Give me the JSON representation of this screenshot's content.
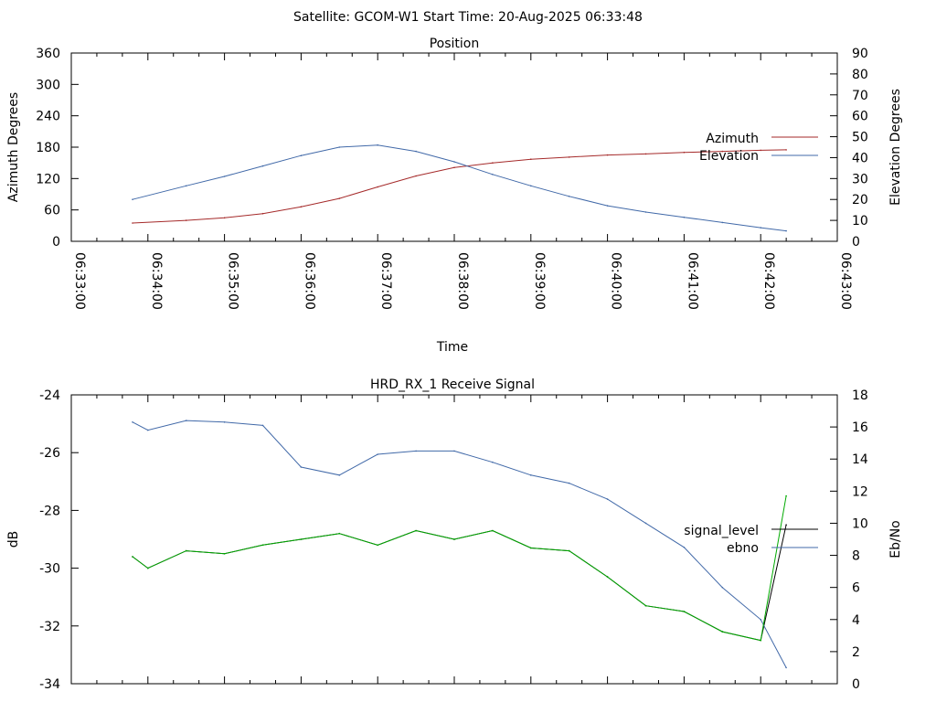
{
  "header": {
    "title": "Satellite: GCOM-W1    Start Time: 20-Aug-2025 06:33:48"
  },
  "chart_data": [
    {
      "type": "line",
      "title": "Position",
      "xlabel": "Time",
      "ylabel": "Azimuth Degrees",
      "y2label": "Elevation Degrees",
      "xlim": [
        "06:33:00",
        "06:43:00"
      ],
      "ylim": [
        0,
        360
      ],
      "y2lim": [
        0,
        90
      ],
      "y_ticks": [
        "0",
        "60",
        "120",
        "180",
        "240",
        "300",
        "360"
      ],
      "y2_ticks": [
        "0",
        "10",
        "20",
        "30",
        "40",
        "50",
        "60",
        "70",
        "80",
        "90"
      ],
      "x_ticks": [
        "06:33:00",
        "06:34:00",
        "06:35:00",
        "06:36:00",
        "06:37:00",
        "06:38:00",
        "06:39:00",
        "06:40:00",
        "06:41:00",
        "06:42:00",
        "06:43:00"
      ],
      "legend_position": "right",
      "grid": false,
      "series": [
        {
          "name": "Azimuth",
          "axis": "left",
          "color": "#a52a2a",
          "x": [
            "06:33:48",
            "06:34:30",
            "06:35:00",
            "06:35:30",
            "06:36:00",
            "06:36:30",
            "06:37:00",
            "06:37:30",
            "06:38:00",
            "06:38:30",
            "06:39:00",
            "06:39:30",
            "06:40:00",
            "06:40:30",
            "06:41:00",
            "06:41:30",
            "06:42:00",
            "06:42:20"
          ],
          "values": [
            35,
            40,
            45,
            53,
            66,
            82,
            104,
            125,
            141,
            150,
            157,
            161,
            165,
            167,
            170,
            172,
            174,
            175
          ]
        },
        {
          "name": "Elevation",
          "axis": "right",
          "color": "#4169a8",
          "x": [
            "06:33:48",
            "06:34:30",
            "06:35:00",
            "06:35:30",
            "06:36:00",
            "06:36:30",
            "06:37:00",
            "06:37:30",
            "06:38:00",
            "06:38:30",
            "06:39:00",
            "06:39:30",
            "06:40:00",
            "06:40:30",
            "06:41:00",
            "06:41:30",
            "06:42:00",
            "06:42:20"
          ],
          "values": [
            20,
            26.5,
            31,
            36,
            41,
            45,
            46,
            43,
            38,
            32,
            26.5,
            21.5,
            17,
            14,
            11.5,
            9,
            6.5,
            5
          ]
        }
      ]
    },
    {
      "type": "line",
      "title": "HRD_RX_1 Receive Signal",
      "ylabel": "dB",
      "y2label": "Eb/No",
      "xlim": [
        "06:33:00",
        "06:43:00"
      ],
      "ylim": [
        -34,
        -24
      ],
      "y2lim": [
        0,
        18
      ],
      "y_ticks": [
        "-34",
        "-32",
        "-30",
        "-28",
        "-26",
        "-24"
      ],
      "y2_ticks": [
        "0",
        "2",
        "4",
        "6",
        "8",
        "10",
        "12",
        "14",
        "16",
        "18"
      ],
      "legend_position": "right",
      "grid": false,
      "series": [
        {
          "name": "signal_level",
          "axis": "left",
          "color": "#000000",
          "x": [
            "06:33:48",
            "06:34:00",
            "06:34:30",
            "06:35:00",
            "06:35:30",
            "06:36:00",
            "06:36:30",
            "06:37:00",
            "06:37:30",
            "06:38:00",
            "06:38:30",
            "06:39:00",
            "06:39:30",
            "06:40:00",
            "06:40:30",
            "06:41:00",
            "06:41:30",
            "06:42:00",
            "06:42:20"
          ],
          "values": [
            -29.6,
            -30.0,
            -29.4,
            -29.5,
            -29.2,
            -29.0,
            -28.8,
            -29.2,
            -28.7,
            -29.0,
            -28.7,
            -29.3,
            -29.4,
            -30.3,
            -31.3,
            -31.5,
            -32.2,
            -32.5,
            -28.5
          ]
        },
        {
          "name": "ebno",
          "axis": "right",
          "color": "#4169a8",
          "x": [
            "06:33:48",
            "06:34:00",
            "06:34:30",
            "06:35:00",
            "06:35:30",
            "06:36:00",
            "06:36:30",
            "06:37:00",
            "06:37:30",
            "06:38:00",
            "06:38:30",
            "06:39:00",
            "06:39:30",
            "06:40:00",
            "06:40:30",
            "06:41:00",
            "06:41:30",
            "06:42:00",
            "06:42:20"
          ],
          "values": [
            16.3,
            15.8,
            16.4,
            16.3,
            16.1,
            13.5,
            13.0,
            14.3,
            14.5,
            14.5,
            13.8,
            13.0,
            12.5,
            11.5,
            10.0,
            8.5,
            6.0,
            4.0,
            1.0
          ]
        },
        {
          "name": "",
          "axis": "left",
          "color": "#00aa00",
          "x": [
            "06:33:48",
            "06:34:00",
            "06:34:30",
            "06:35:00",
            "06:35:30",
            "06:36:00",
            "06:36:30",
            "06:37:00",
            "06:37:30",
            "06:38:00",
            "06:38:30",
            "06:39:00",
            "06:39:30",
            "06:40:00",
            "06:40:30",
            "06:41:00",
            "06:41:30",
            "06:42:00",
            "06:42:20"
          ],
          "values": [
            -29.6,
            -30.0,
            -29.4,
            -29.5,
            -29.2,
            -29.0,
            -28.8,
            -29.2,
            -28.7,
            -29.0,
            -28.7,
            -29.3,
            -29.4,
            -30.3,
            -31.3,
            -31.5,
            -32.2,
            -32.5,
            -27.5
          ]
        }
      ]
    }
  ]
}
